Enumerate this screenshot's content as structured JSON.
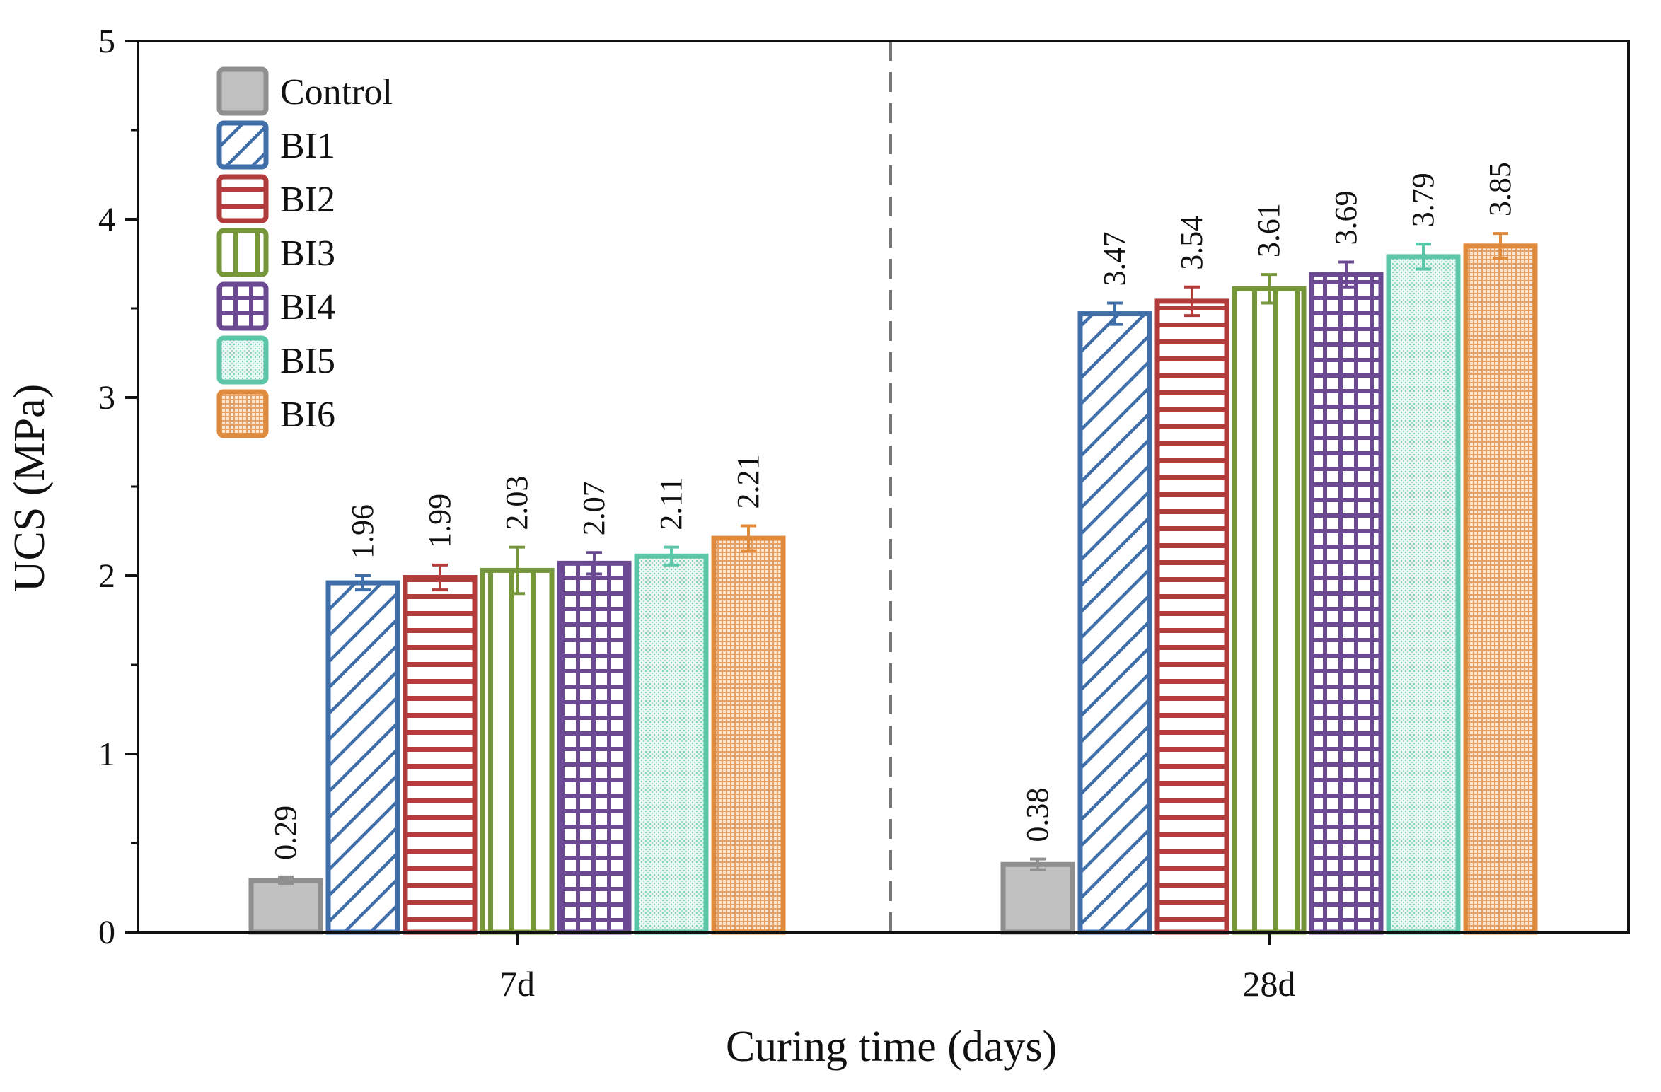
{
  "chart_data": {
    "type": "bar",
    "title": "",
    "xlabel": "Curing time (days)",
    "ylabel": "UCS (MPa)",
    "ylim": [
      0,
      5
    ],
    "yticks": [
      "0",
      "1",
      "2",
      "3",
      "4",
      "5"
    ],
    "categories": [
      "7d",
      "28d"
    ],
    "legend_position": "top-left",
    "grid": false,
    "separator": "dashed vertical line between groups",
    "series": [
      {
        "name": "Control",
        "pattern": "solid",
        "color": "#8f8f8f",
        "fill": "#c0c0c0",
        "values": [
          0.29,
          0.38
        ],
        "errors": [
          0.02,
          0.03
        ],
        "labels": [
          "0.29",
          "0.38"
        ]
      },
      {
        "name": "BI1",
        "pattern": "diagonal",
        "color": "#3f6ea8",
        "fill": "#ffffff",
        "values": [
          1.96,
          3.47
        ],
        "errors": [
          0.04,
          0.06
        ],
        "labels": [
          "1.96",
          "3.47"
        ]
      },
      {
        "name": "BI2",
        "pattern": "horizontal",
        "color": "#b23c3c",
        "fill": "#ffffff",
        "values": [
          1.99,
          3.54
        ],
        "errors": [
          0.07,
          0.08
        ],
        "labels": [
          "1.99",
          "3.54"
        ]
      },
      {
        "name": "BI3",
        "pattern": "vertical",
        "color": "#76963a",
        "fill": "#ffffff",
        "values": [
          2.03,
          3.61
        ],
        "errors": [
          0.13,
          0.08
        ],
        "labels": [
          "2.03",
          "3.61"
        ]
      },
      {
        "name": "BI4",
        "pattern": "grid",
        "color": "#6c4a93",
        "fill": "#ffffff",
        "values": [
          2.07,
          3.69
        ],
        "errors": [
          0.06,
          0.07
        ],
        "labels": [
          "2.07",
          "3.69"
        ]
      },
      {
        "name": "BI5",
        "pattern": "dots",
        "color": "#5cc6a8",
        "fill": "#ffffff",
        "values": [
          2.11,
          3.79
        ],
        "errors": [
          0.05,
          0.07
        ],
        "labels": [
          "2.11",
          "3.79"
        ]
      },
      {
        "name": "BI6",
        "pattern": "finegrid",
        "color": "#e08a3e",
        "fill": "#ffffff",
        "values": [
          2.21,
          3.85
        ],
        "errors": [
          0.07,
          0.07
        ],
        "labels": [
          "2.21",
          "3.85"
        ]
      }
    ]
  }
}
